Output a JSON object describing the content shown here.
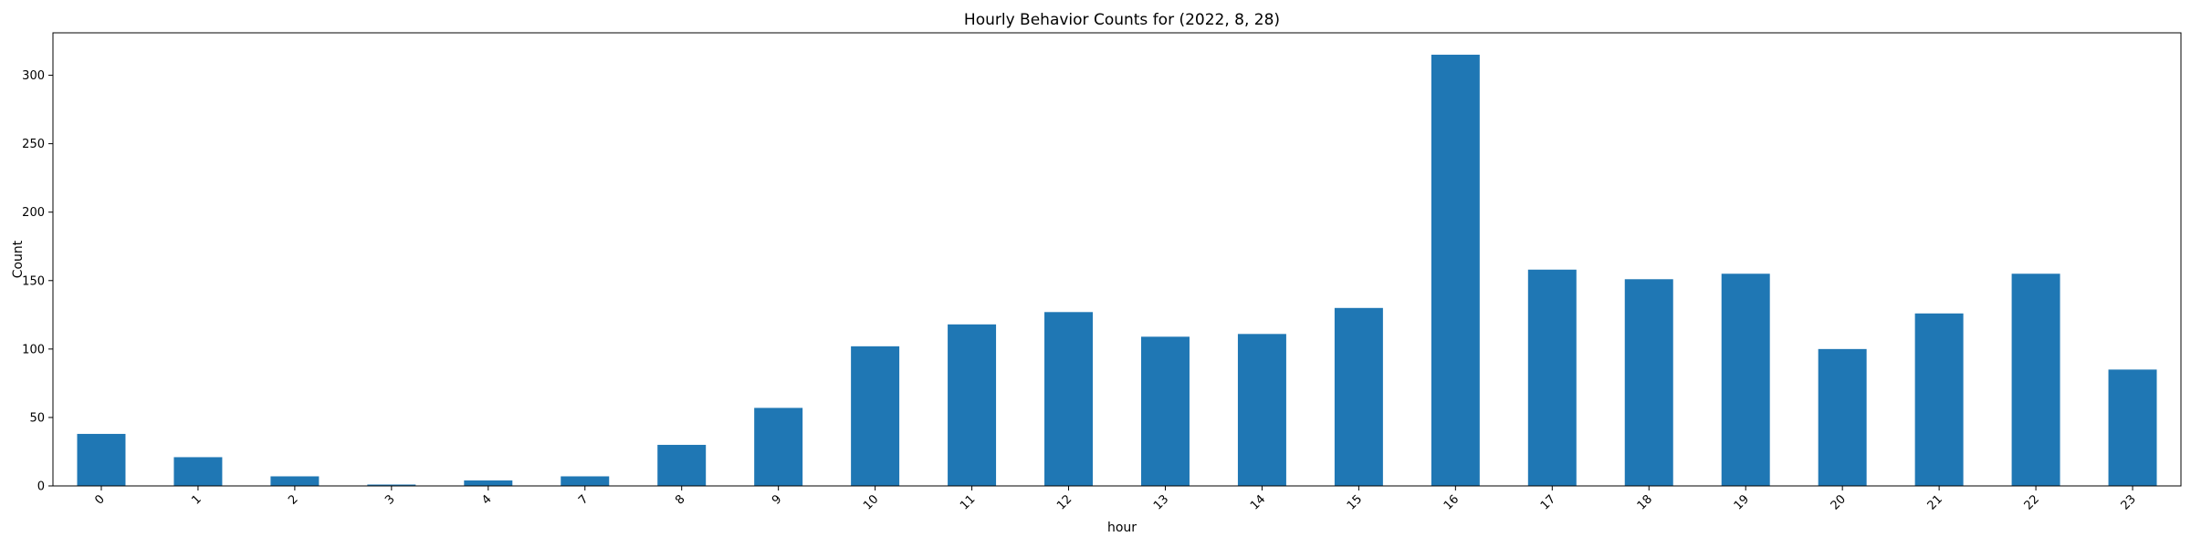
{
  "chart_data": {
    "type": "bar",
    "title": "Hourly Behavior Counts for (2022, 8, 28)",
    "xlabel": "hour",
    "ylabel": "Count",
    "categories": [
      "0",
      "1",
      "2",
      "3",
      "4",
      "7",
      "8",
      "9",
      "10",
      "11",
      "12",
      "13",
      "14",
      "15",
      "16",
      "17",
      "18",
      "19",
      "20",
      "21",
      "22",
      "23"
    ],
    "values": [
      38,
      21,
      7,
      1,
      4,
      7,
      30,
      57,
      102,
      118,
      127,
      109,
      111,
      130,
      315,
      158,
      151,
      155,
      100,
      126,
      155,
      85
    ],
    "ylim": [
      0,
      331
    ],
    "yticks": [
      0,
      50,
      100,
      150,
      200,
      250,
      300
    ],
    "grid": false,
    "legend": "none",
    "colors": {
      "bar": "#1f77b4",
      "axis": "#000000"
    }
  }
}
